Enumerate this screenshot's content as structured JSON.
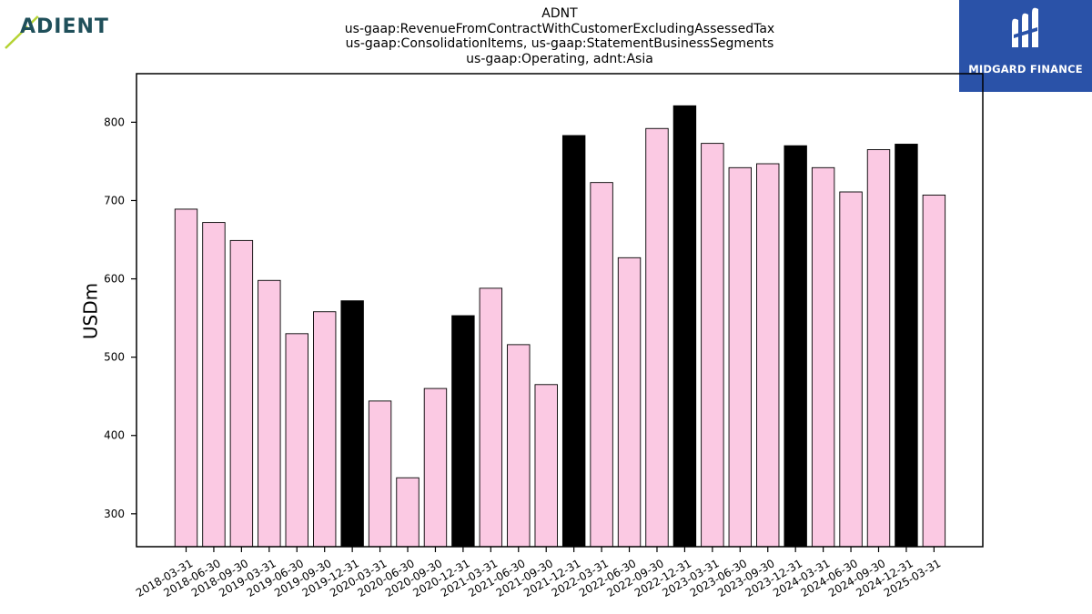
{
  "branding": {
    "left_logo": {
      "text": "ADIENT",
      "color": "#1f4f5a",
      "accent": "#b5d334"
    },
    "right_logo": {
      "text": "MIDGARD FINANCE",
      "background": "#2a52a8"
    }
  },
  "chart_data": {
    "type": "bar",
    "title": [
      "ADNT",
      "us-gaap:RevenueFromContractWithCustomerExcludingAssessedTax",
      "us-gaap:ConsolidationItems, us-gaap:StatementBusinessSegments",
      "us-gaap:Operating, adnt:Asia"
    ],
    "ylabel": "USDm",
    "xlabel": "",
    "ylim": [
      258,
      862
    ],
    "yticks": [
      300,
      400,
      500,
      600,
      700,
      800
    ],
    "categories": [
      "2018-03-31",
      "2018-06-30",
      "2018-09-30",
      "2019-03-31",
      "2019-06-30",
      "2019-09-30",
      "2019-12-31",
      "2020-03-31",
      "2020-06-30",
      "2020-09-30",
      "2020-12-31",
      "2021-03-31",
      "2021-06-30",
      "2021-09-30",
      "2021-12-31",
      "2022-03-31",
      "2022-06-30",
      "2022-09-30",
      "2022-12-31",
      "2023-03-31",
      "2023-06-30",
      "2023-09-30",
      "2023-12-31",
      "2024-03-31",
      "2024-06-30",
      "2024-09-30",
      "2024-12-31",
      "2025-03-31"
    ],
    "values": [
      689,
      672,
      649,
      598,
      530,
      558,
      572,
      444,
      346,
      460,
      553,
      588,
      516,
      465,
      783,
      723,
      627,
      792,
      821,
      773,
      742,
      747,
      770,
      742,
      711,
      765,
      772,
      707
    ],
    "highlight": [
      false,
      false,
      false,
      false,
      false,
      false,
      true,
      false,
      false,
      false,
      true,
      false,
      false,
      false,
      true,
      false,
      false,
      false,
      true,
      false,
      false,
      false,
      true,
      false,
      false,
      false,
      true,
      false
    ],
    "colors": {
      "normal": "#fbc9e3",
      "highlight": "#000000",
      "edge": "#000000"
    },
    "grid": false,
    "legend": "none"
  }
}
